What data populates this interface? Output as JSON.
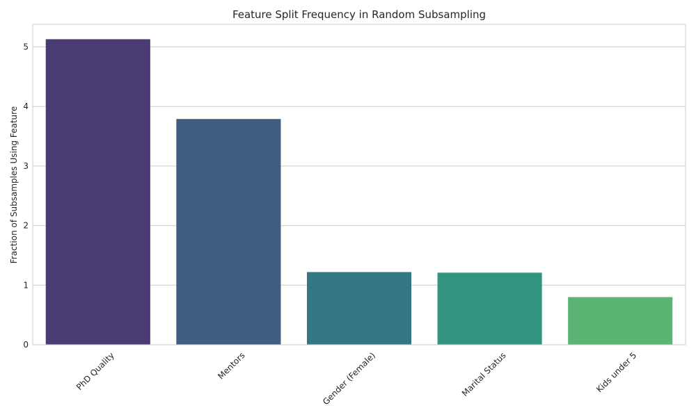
{
  "chart_data": {
    "type": "bar",
    "title": "Feature Split Frequency in Random Subsampling",
    "xlabel": "",
    "ylabel": "Fraction of Subsamples Using Feature",
    "categories": [
      "PhD Quality",
      "Mentors",
      "Gender (Female)",
      "Marital Status",
      "Kids under 5"
    ],
    "values": [
      5.13,
      3.79,
      1.22,
      1.21,
      0.8
    ],
    "colors": [
      "#4a3b73",
      "#3f5e7f",
      "#347682",
      "#33957f",
      "#5ab473"
    ],
    "ylim": [
      0,
      5.38
    ],
    "yticks": [
      0,
      1,
      2,
      3,
      4,
      5
    ],
    "grid": true,
    "legend": "none"
  }
}
